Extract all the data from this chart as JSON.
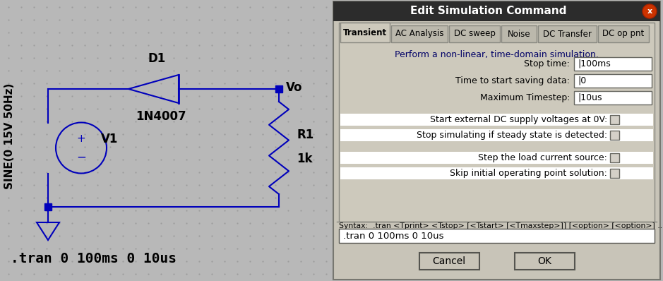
{
  "bg_circuit": "#b8b8b8",
  "bg_dialog": "#c8c4b8",
  "bg_dialog_title": "#2c2c2c",
  "blue": "#0000bb",
  "dot_color": "#999999",
  "title_text": "Edit Simulation Command",
  "close_btn_color": "#cc3300",
  "tab_labels": [
    "Transient",
    "AC Analysis",
    "DC sweep",
    "Noise",
    "DC Transfer",
    "DC op pnt"
  ],
  "description": "Perform a non-linear, time-domain simulation.",
  "fields": [
    {
      "label": "Stop time:",
      "value": "100ms"
    },
    {
      "label": "Time to start saving data:",
      "value": "0"
    },
    {
      "label": "Maximum Timestep:",
      "value": "10us"
    }
  ],
  "checkboxes1": [
    "Start external DC supply voltages at 0V:",
    "Stop simulating if steady state is detected:"
  ],
  "checkboxes2": [
    "Step the load current source:",
    "Skip initial operating point solution:"
  ],
  "syntax_text": "Syntax:  .tran <Tprint> <Tstop> [<Tstart> [<Tmaxstep>]] [<option> [<option>] ...]",
  "command_text": ".tran 0 100ms 0 10us",
  "sine_label": "SINE(0 15V 50Hz)",
  "tran_label": ".tran 0 100ms 0 10us",
  "d1_label": "D1",
  "diode_label": "1N4007",
  "v1_label": "V1",
  "r1_label": "R1",
  "r1_val": "1k",
  "vo_label": "Vo"
}
